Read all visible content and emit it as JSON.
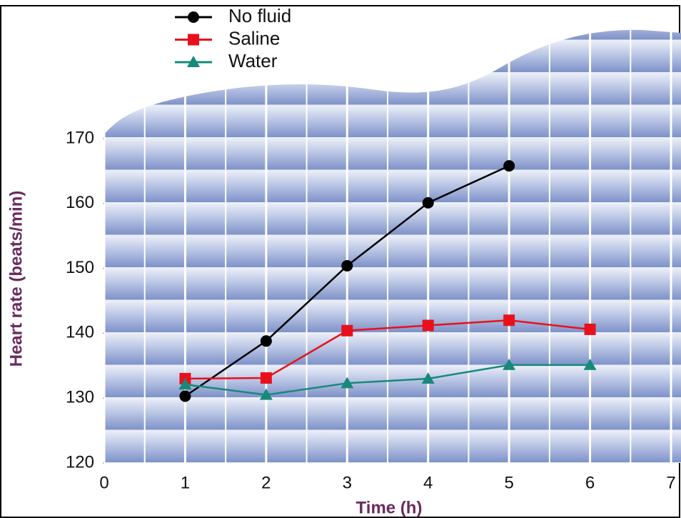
{
  "chart_data": {
    "type": "line",
    "x": [
      1,
      2,
      3,
      4,
      5,
      6
    ],
    "series": [
      {
        "name": "No fluid",
        "color": "#000000",
        "marker": "circle",
        "values": [
          130.3,
          138.8,
          150.4,
          160.1,
          165.8,
          null
        ]
      },
      {
        "name": "Saline",
        "color": "#e8111b",
        "marker": "square",
        "values": [
          133.0,
          133.1,
          140.4,
          141.2,
          142.0,
          140.6
        ]
      },
      {
        "name": "Water",
        "color": "#17897a",
        "marker": "triangle",
        "values": [
          132.1,
          130.5,
          132.3,
          133.0,
          135.1,
          135.1
        ]
      }
    ],
    "xlim": [
      0,
      7
    ],
    "xticks": [
      0,
      1,
      2,
      3,
      4,
      5,
      6,
      7
    ],
    "ylim": [
      120,
      170
    ],
    "yticks": [
      120,
      130,
      140,
      150,
      160,
      170
    ],
    "xlabel": "Time (h)",
    "ylabel": "Heart rate (beats/min)",
    "grid": true
  }
}
